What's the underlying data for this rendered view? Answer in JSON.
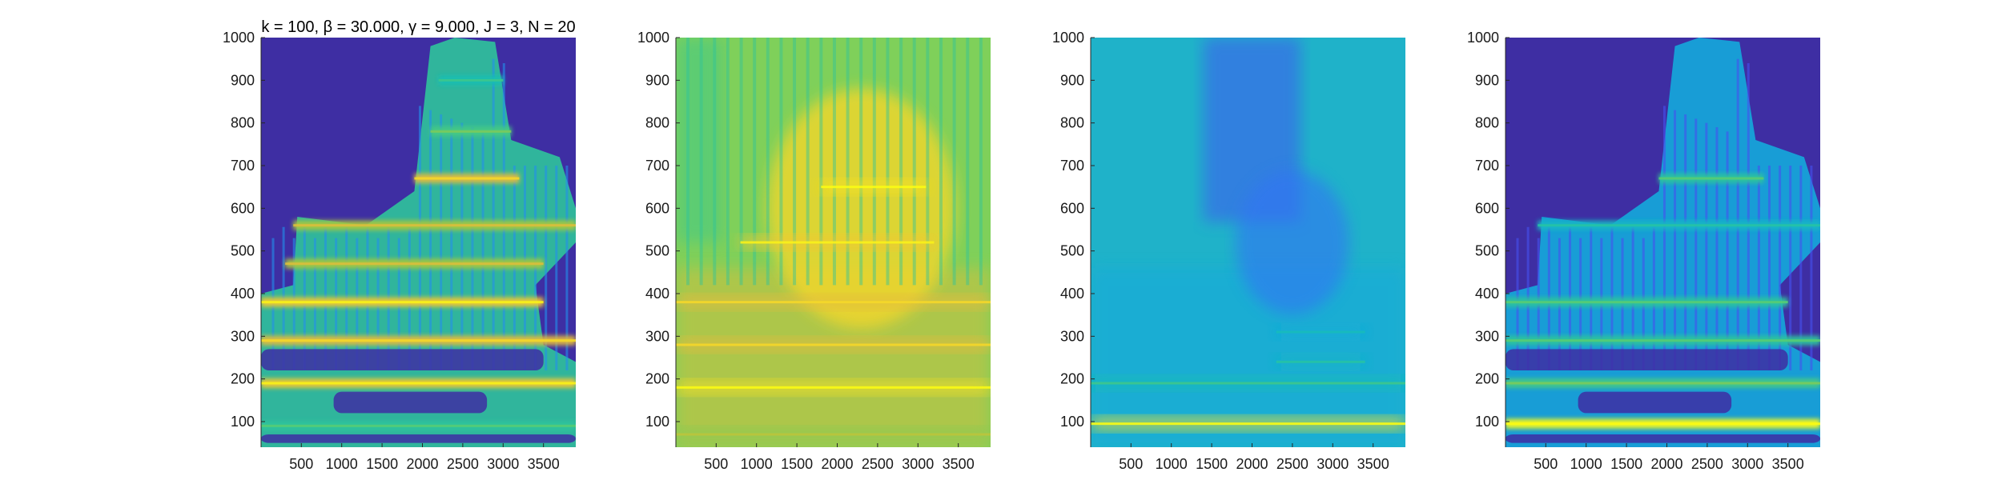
{
  "chart_data": [
    {
      "type": "heatmap",
      "title": "k = 100, β = 30.000, γ = 9.000, J = 3, N = 20",
      "xlabel": "",
      "ylabel": "",
      "xlim": [
        1,
        3900
      ],
      "ylim": [
        40,
        1000
      ],
      "x_ticks": [
        500,
        1000,
        1500,
        2000,
        2500,
        3000,
        3500
      ],
      "y_ticks": [
        100,
        200,
        300,
        400,
        500,
        600,
        700,
        800,
        900,
        1000
      ],
      "colormap": "parula",
      "style": "sparse",
      "background_color": "#3e2ea3",
      "ridges": [
        {
          "y": 90,
          "x_start": 0,
          "x_end": 3900,
          "strength": 0.55
        },
        {
          "y": 190,
          "x_start": 0,
          "x_end": 3900,
          "strength": 0.9
        },
        {
          "y": 290,
          "x_start": 0,
          "x_end": 3900,
          "strength": 0.85
        },
        {
          "y": 380,
          "x_start": 0,
          "x_end": 3500,
          "strength": 0.9
        },
        {
          "y": 470,
          "x_start": 300,
          "x_end": 3500,
          "strength": 0.75
        },
        {
          "y": 560,
          "x_start": 400,
          "x_end": 3900,
          "strength": 0.75
        },
        {
          "y": 670,
          "x_start": 1900,
          "x_end": 3200,
          "strength": 0.85
        },
        {
          "y": 780,
          "x_start": 2100,
          "x_end": 3100,
          "strength": 0.6
        },
        {
          "y": 900,
          "x_start": 2200,
          "x_end": 3000,
          "strength": 0.5
        }
      ]
    },
    {
      "type": "heatmap",
      "xlabel": "",
      "ylabel": "",
      "xlim": [
        1,
        3900
      ],
      "ylim": [
        40,
        1000
      ],
      "x_ticks": [
        500,
        1000,
        1500,
        2000,
        2500,
        3000,
        3500
      ],
      "y_ticks": [
        100,
        200,
        300,
        400,
        500,
        600,
        700,
        800,
        900,
        1000
      ],
      "colormap": "parula",
      "style": "smooth-warm",
      "background_color": "#7fd05a",
      "ridges": [
        {
          "y": 70,
          "x_start": 0,
          "x_end": 3900,
          "strength": 0.7
        },
        {
          "y": 180,
          "x_start": 0,
          "x_end": 3900,
          "strength": 0.95
        },
        {
          "y": 280,
          "x_start": 0,
          "x_end": 3900,
          "strength": 0.85
        },
        {
          "y": 380,
          "x_start": 0,
          "x_end": 3900,
          "strength": 0.85
        },
        {
          "y": 520,
          "x_start": 800,
          "x_end": 3200,
          "strength": 0.9
        },
        {
          "y": 650,
          "x_start": 1800,
          "x_end": 3100,
          "strength": 0.95
        }
      ]
    },
    {
      "type": "heatmap",
      "xlabel": "",
      "ylabel": "",
      "xlim": [
        1,
        3900
      ],
      "ylim": [
        40,
        1000
      ],
      "x_ticks": [
        500,
        1000,
        1500,
        2000,
        2500,
        3000,
        3500
      ],
      "y_ticks": [
        100,
        200,
        300,
        400,
        500,
        600,
        700,
        800,
        900,
        1000
      ],
      "colormap": "parula",
      "style": "smooth-cool",
      "background_color": "#1fb2c9",
      "ridges": [
        {
          "y": 95,
          "x_start": 0,
          "x_end": 3900,
          "strength": 0.95
        },
        {
          "y": 190,
          "x_start": 0,
          "x_end": 3900,
          "strength": 0.5
        },
        {
          "y": 240,
          "x_start": 2300,
          "x_end": 3400,
          "strength": 0.45
        },
        {
          "y": 310,
          "x_start": 2300,
          "x_end": 3400,
          "strength": 0.4
        }
      ]
    },
    {
      "type": "heatmap",
      "xlabel": "",
      "ylabel": "",
      "xlim": [
        1,
        3900
      ],
      "ylim": [
        40,
        1000
      ],
      "x_ticks": [
        500,
        1000,
        1500,
        2000,
        2500,
        3000,
        3500
      ],
      "y_ticks": [
        100,
        200,
        300,
        400,
        500,
        600,
        700,
        800,
        900,
        1000
      ],
      "colormap": "parula",
      "style": "sparse-cool",
      "background_color": "#3e2ea3",
      "ridges": [
        {
          "y": 95,
          "x_start": 0,
          "x_end": 3900,
          "strength": 1.0
        },
        {
          "y": 190,
          "x_start": 0,
          "x_end": 3900,
          "strength": 0.6
        },
        {
          "y": 290,
          "x_start": 0,
          "x_end": 3900,
          "strength": 0.55
        },
        {
          "y": 380,
          "x_start": 0,
          "x_end": 3500,
          "strength": 0.55
        },
        {
          "y": 560,
          "x_start": 400,
          "x_end": 3900,
          "strength": 0.45
        },
        {
          "y": 670,
          "x_start": 1900,
          "x_end": 3200,
          "strength": 0.55
        }
      ]
    }
  ]
}
